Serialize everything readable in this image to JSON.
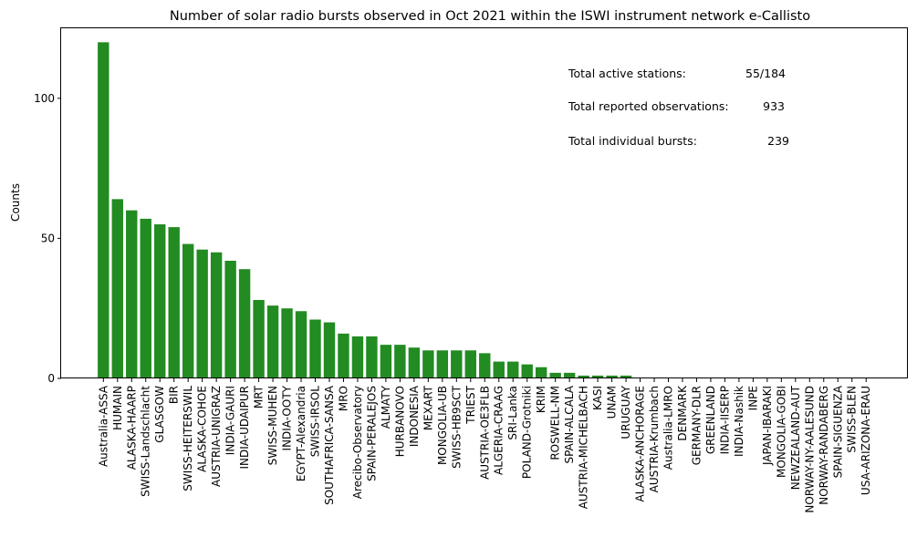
{
  "chart_data": {
    "type": "bar",
    "title": "Number of solar radio bursts observed in Oct 2021 within the ISWI instrument network e-Callisto",
    "xlabel": "",
    "ylabel": "Counts",
    "ylim": [
      0,
      125
    ],
    "yticks": [
      0,
      50,
      100
    ],
    "grid": false,
    "bar_color": "#228b22",
    "categories": [
      "Australia-ASSA",
      "HUMAIN",
      "ALASKA-HAARP",
      "SWISS-Landschlacht",
      "GLASGOW",
      "BIR",
      "SWISS-HEITERSWIL",
      "ALASKA-COHOE",
      "AUSTRIA-UNIGRAZ",
      "INDIA-GAURI",
      "INDIA-UDAIPUR",
      "MRT",
      "SWISS-MUHEN",
      "INDIA-OOTY",
      "EGYPT-Alexandria",
      "SWISS-IRSOL",
      "SOUTHAFRICA-SANSA",
      "MRO",
      "Arecibo-Observatory",
      "SPAIN-PERALEJOS",
      "ALMATY",
      "HURBANOVO",
      "INDONESIA",
      "MEXART",
      "MONGOLIA-UB",
      "SWISS-HB9SCT",
      "TRIEST",
      "AUSTRIA-OE3FLB",
      "ALGERIA-CRAAG",
      "SRI-Lanka",
      "POLAND-Grotniki",
      "KRIM",
      "ROSWELL-NM",
      "SPAIN-ALCALA",
      "AUSTRIA-MICHELBACH",
      "KASI",
      "UNAM",
      "URUGUAY",
      "ALASKA-ANCHORAGE",
      "AUSTRIA-Krumbach",
      "Australia-LMRO",
      "DENMARK",
      "GERMANY-DLR",
      "GREENLAND",
      "INDIA-IISERP",
      "INDIA-Nashik",
      "INPE",
      "JAPAN-IBARAKI",
      "MONGOLIA-GOBI",
      "NEWZEALAND-AUT",
      "NORWAY-NY-AALESUND",
      "NORWAY-RANDABERG",
      "SPAIN-SIGUENZA",
      "SWISS-BLEN",
      "USA-ARIZONA-ERAU"
    ],
    "values": [
      120,
      64,
      60,
      57,
      55,
      54,
      48,
      46,
      45,
      42,
      39,
      28,
      26,
      25,
      24,
      21,
      20,
      16,
      15,
      15,
      12,
      12,
      11,
      10,
      10,
      10,
      10,
      9,
      6,
      6,
      5,
      4,
      2,
      2,
      1,
      1,
      1,
      1,
      0,
      0,
      0,
      0,
      0,
      0,
      0,
      0,
      0,
      0,
      0,
      0,
      0,
      0,
      0,
      0,
      0
    ],
    "annotations": [
      {
        "label": "Total active stations:",
        "value": "55/184"
      },
      {
        "label": "Total reported observations:",
        "value": "933"
      },
      {
        "label": "Total individual bursts:",
        "value": "239"
      }
    ]
  }
}
